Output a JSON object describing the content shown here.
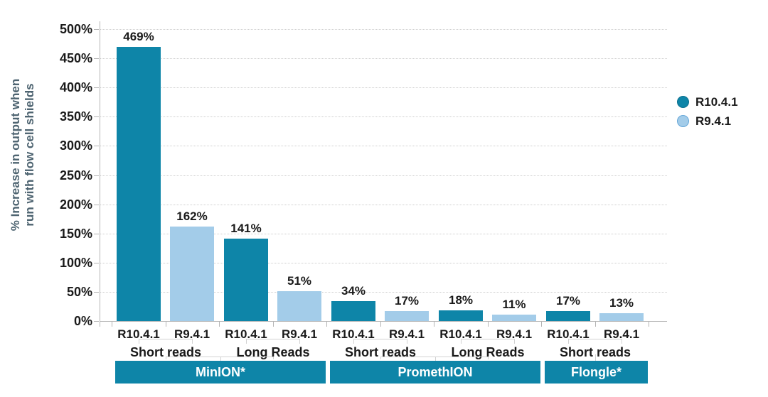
{
  "chart_data": {
    "type": "bar",
    "title": "",
    "y_axis": {
      "label_lines": [
        "% Increase in output when",
        "run with flow cell shields"
      ],
      "ticks": [
        "0%",
        "50%",
        "100%",
        "150%",
        "200%",
        "250%",
        "300%",
        "350%",
        "400%",
        "450%",
        "500%"
      ],
      "min": 0,
      "max": 500,
      "step": 50,
      "grid": "dotted-horizontal"
    },
    "legend": {
      "position": "right",
      "items": [
        {
          "label": "R10.4.1",
          "color": "#0e85a8",
          "border": "#0a6f8e"
        },
        {
          "label": "R9.4.1",
          "color": "#a3cce9",
          "border": "#64a6d8"
        }
      ]
    },
    "data_label_suffix": "%",
    "device_box_color": "#0e85a8",
    "device_box_text_color": "#ffffff",
    "groups": [
      {
        "device": "MinION*",
        "read_types": [
          {
            "label": "Short reads",
            "bars": [
              {
                "pore": "R10.4.1",
                "value": 469
              },
              {
                "pore": "R9.4.1",
                "value": 162
              }
            ]
          },
          {
            "label": "Long Reads",
            "bars": [
              {
                "pore": "R10.4.1",
                "value": 141
              },
              {
                "pore": "R9.4.1",
                "value": 51
              }
            ]
          }
        ]
      },
      {
        "device": "PromethION",
        "read_types": [
          {
            "label": "Short reads",
            "bars": [
              {
                "pore": "R10.4.1",
                "value": 34
              },
              {
                "pore": "R9.4.1",
                "value": 17
              }
            ]
          },
          {
            "label": "Long Reads",
            "bars": [
              {
                "pore": "R10.4.1",
                "value": 18
              },
              {
                "pore": "R9.4.1",
                "value": 11
              }
            ]
          }
        ]
      },
      {
        "device": "Flongle*",
        "read_types": [
          {
            "label": "Short reads",
            "bars": [
              {
                "pore": "R10.4.1",
                "value": 17
              },
              {
                "pore": "R9.4.1",
                "value": 13
              }
            ]
          }
        ]
      }
    ]
  }
}
